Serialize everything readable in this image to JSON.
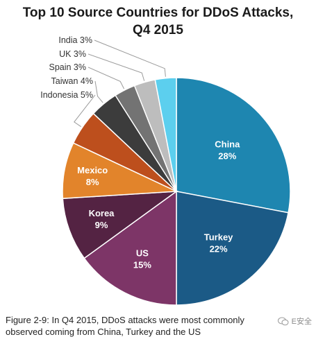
{
  "chart_data": {
    "type": "pie",
    "title_lines": [
      "Top 10 Source Countries for DDoS Attacks,",
      "Q4 2015"
    ],
    "slices": [
      {
        "label": "China",
        "value": 28,
        "display": "28%",
        "color": "#1e86b0"
      },
      {
        "label": "Turkey",
        "value": 22,
        "display": "22%",
        "color": "#1b5a86"
      },
      {
        "label": "US",
        "value": 15,
        "display": "15%",
        "color": "#7d3567"
      },
      {
        "label": "Korea",
        "value": 9,
        "display": "9%",
        "color": "#542343"
      },
      {
        "label": "Mexico",
        "value": 8,
        "display": "8%",
        "color": "#e2842b"
      },
      {
        "label": "Indonesia",
        "value": 5,
        "display": "5%",
        "color": "#bd4f1d"
      },
      {
        "label": "Taiwan",
        "value": 4,
        "display": "4%",
        "color": "#3c3c3c"
      },
      {
        "label": "Spain",
        "value": 3,
        "display": "3%",
        "color": "#737373"
      },
      {
        "label": "UK",
        "value": 3,
        "display": "3%",
        "color": "#bdbdbd"
      },
      {
        "label": "India",
        "value": 3,
        "display": "3%",
        "color": "#5ccfee"
      }
    ],
    "label_placement": "inside for large slices; leader lines to the upper-left for small slices",
    "legend": "none"
  },
  "caption": {
    "line1": "Figure 2-9: In Q4 2015, DDoS attacks were most commonly",
    "line2": "observed coming from China, Turkey and the US"
  },
  "watermark": {
    "text": "E安全",
    "icon": "wechat-icon"
  }
}
